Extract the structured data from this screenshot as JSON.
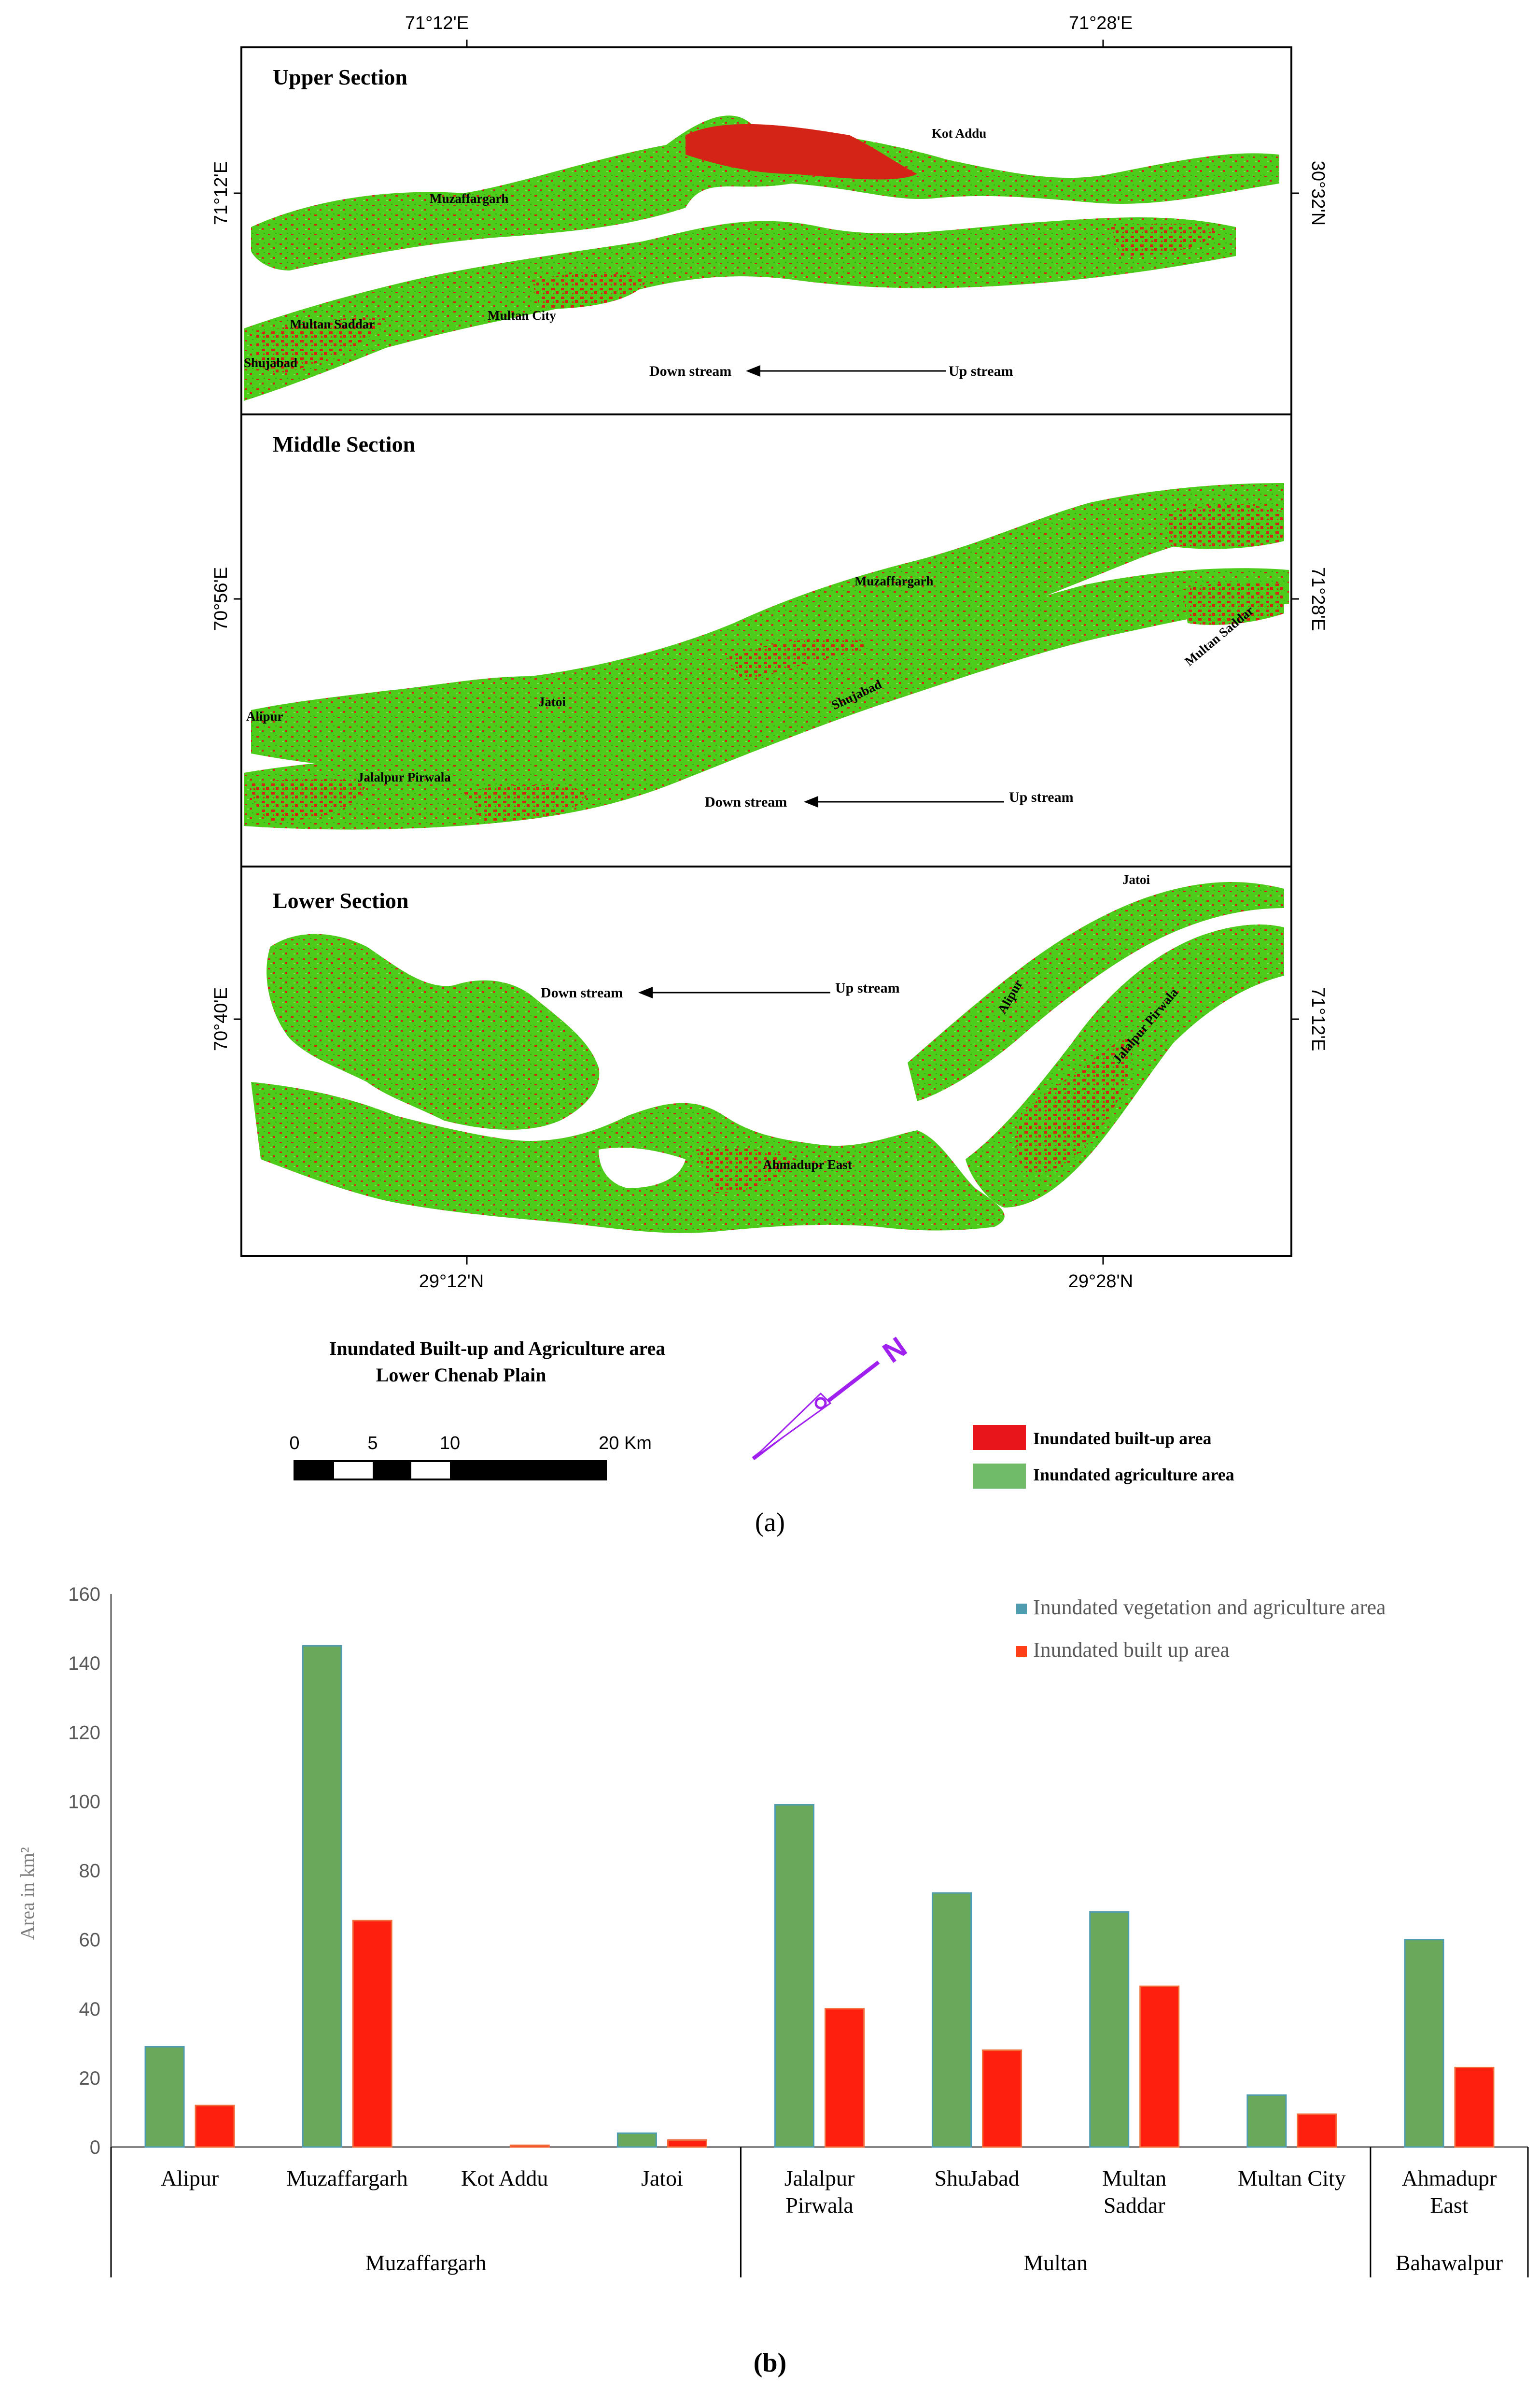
{
  "map": {
    "sections": [
      {
        "title": "Upper Section",
        "left_coord": "71°12'E",
        "right_coord": "30°32'N",
        "towns": [
          "Kot Addu",
          "Muzaffargarh",
          "Multan Saddar",
          "Multan City",
          "Shujabad"
        ],
        "down_stream": "Down stream",
        "up_stream": "Up stream"
      },
      {
        "title": "Middle Section",
        "left_coord": "70°56'E",
        "right_coord": "71°28'E",
        "towns": [
          "Muzaffargarh",
          "Multan Saddar",
          "Alipur",
          "Jatoi",
          "Shujabad",
          "Jalalpur Pirwala"
        ],
        "down_stream": "Down stream",
        "up_stream": "Up stream"
      },
      {
        "title": "Lower Section",
        "left_coord": "70°40'E",
        "right_coord": "71°12'E",
        "towns": [
          "Jatoi",
          "Alipur",
          "Jalalpur Pirwala",
          "Ahmadupr East"
        ],
        "down_stream": "Down stream",
        "up_stream": "Up stream"
      }
    ],
    "top_coords": [
      "71°12'E",
      "71°28'E"
    ],
    "bottom_coords": [
      "29°12'N",
      "29°28'N"
    ],
    "title_line1": "Inundated Built-up and Agriculture area",
    "title_line2": "Lower Chenab Plain",
    "scale_labels": [
      "0",
      "5",
      "10",
      "20 Km"
    ],
    "north_label": "N",
    "legend": [
      {
        "label": "Inundated built-up area",
        "color": "#e8161b"
      },
      {
        "label": "Inundated agriculture area",
        "color": "#6fbb6a"
      }
    ],
    "panel_label": "(a)"
  },
  "chart_data": {
    "type": "bar",
    "panel_label": "(b)",
    "ylabel": "Area in km²",
    "ylim": [
      0,
      160
    ],
    "yticks": [
      0,
      20,
      40,
      60,
      80,
      100,
      120,
      140,
      160
    ],
    "categories": [
      [
        "Alipur"
      ],
      [
        "Muzaffargarh"
      ],
      [
        "Kot Addu"
      ],
      [
        "Jatoi"
      ],
      [
        "Jalalpur",
        "Pirwala"
      ],
      [
        "ShuJabad"
      ],
      [
        "Multan",
        "Saddar"
      ],
      [
        "Multan City"
      ],
      [
        "Ahmadupr",
        "East"
      ]
    ],
    "groups": [
      {
        "label": "Muzaffargarh",
        "count": 4
      },
      {
        "label": "Multan",
        "count": 4
      },
      {
        "label": "Bahawalpur",
        "count": 1
      }
    ],
    "series": [
      {
        "name": "Inundated vegetation and agriculture area",
        "color": "#6aa85c",
        "edge": "#4f9cb0",
        "values": [
          29,
          145,
          0,
          4,
          99,
          73.5,
          68,
          15,
          60
        ]
      },
      {
        "name": "Inundated built up area",
        "color": "#ff1f0f",
        "edge": "#f26b3a",
        "values": [
          12,
          65.5,
          0.5,
          2,
          40,
          28,
          46.5,
          9.5,
          23
        ]
      }
    ]
  }
}
